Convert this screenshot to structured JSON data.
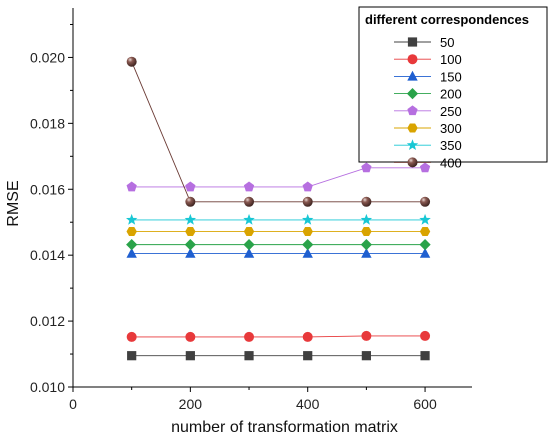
{
  "chart_data": {
    "type": "line",
    "xlabel": "number of transformation matrix",
    "ylabel": "RMSE",
    "xlim": [
      0,
      680
    ],
    "ylim": [
      0.01,
      0.0215
    ],
    "xticks": [
      0,
      200,
      400,
      600
    ],
    "yticks": [
      0.01,
      0.012,
      0.014,
      0.016,
      0.018,
      0.02
    ],
    "ytick_labels": [
      "0.010",
      "0.012",
      "0.014",
      "0.016",
      "0.018",
      "0.020"
    ],
    "legend_title": "different correspondences",
    "legend_placement": "top-right",
    "grid": false,
    "x": [
      100,
      200,
      300,
      400,
      500,
      600
    ],
    "series": [
      {
        "name": "50",
        "marker": "square",
        "color": "#404040",
        "values": [
          0.01095,
          0.01095,
          0.01095,
          0.01095,
          0.01095,
          0.01095
        ]
      },
      {
        "name": "100",
        "marker": "circle",
        "color": "#e8393b",
        "values": [
          0.01152,
          0.01152,
          0.01152,
          0.01152,
          0.01155,
          0.01155
        ]
      },
      {
        "name": "150",
        "marker": "triangle",
        "color": "#1f5fd0",
        "values": [
          0.01405,
          0.01405,
          0.01405,
          0.01405,
          0.01405,
          0.01405
        ]
      },
      {
        "name": "200",
        "marker": "diamond",
        "color": "#2aa34a",
        "values": [
          0.01432,
          0.01432,
          0.01432,
          0.01432,
          0.01432,
          0.01432
        ]
      },
      {
        "name": "250",
        "marker": "pentagon",
        "color": "#b66fe0",
        "values": [
          0.01607,
          0.01607,
          0.01607,
          0.01607,
          0.01665,
          0.01665
        ]
      },
      {
        "name": "300",
        "marker": "hexagon",
        "color": "#d9a400",
        "values": [
          0.01472,
          0.01472,
          0.01472,
          0.01472,
          0.01472,
          0.01472
        ]
      },
      {
        "name": "350",
        "marker": "star",
        "color": "#18c7d4",
        "values": [
          0.01507,
          0.01507,
          0.01507,
          0.01507,
          0.01507,
          0.01507
        ]
      },
      {
        "name": "400",
        "marker": "sphere",
        "color": "#6b3b35",
        "values": [
          0.01987,
          0.01562,
          0.01562,
          0.01562,
          0.01562,
          0.01562
        ]
      }
    ]
  }
}
